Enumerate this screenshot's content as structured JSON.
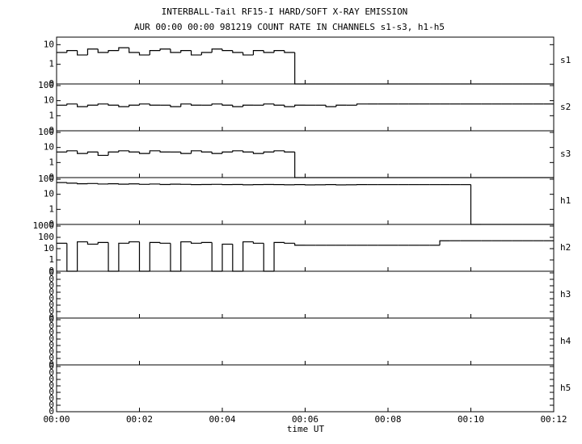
{
  "chart_data": {
    "type": "line",
    "title": "INTERBALL-Tail RF15-I HARD/SOFT X-RAY EMISSION",
    "subtitle": "AUR 00:00 00:00 981219  COUNT RATE IN CHANNELS s1-s3, h1-h5",
    "x_label": "time UT",
    "xlim": [
      0,
      12
    ],
    "xticks": [
      {
        "value": 0,
        "label": "00:00"
      },
      {
        "value": 2,
        "label": "00:02"
      },
      {
        "value": 4,
        "label": "00:04"
      },
      {
        "value": 6,
        "label": "00:06"
      },
      {
        "value": 8,
        "label": "00:08"
      },
      {
        "value": 10,
        "label": "00:10"
      },
      {
        "value": 12,
        "label": "00:12"
      }
    ],
    "yscale": "log",
    "color": "#000000",
    "x": [
      0,
      0.25,
      0.5,
      0.75,
      1,
      1.25,
      1.5,
      1.75,
      2,
      2.25,
      2.5,
      2.75,
      3,
      3.25,
      3.5,
      3.75,
      4,
      4.25,
      4.5,
      4.75,
      5,
      5.25,
      5.5,
      5.75,
      6,
      6.25,
      6.5,
      6.75,
      7,
      7.25,
      7.5,
      7.75,
      8,
      8.25,
      8.5,
      8.75,
      9,
      9.25,
      9.5,
      9.75,
      10,
      10.25,
      10.5,
      10.75,
      11,
      11.25,
      11.5,
      11.75,
      12
    ],
    "panels": [
      {
        "name": "s1",
        "ylim": [
          0,
          20
        ],
        "yticks": [
          0,
          1,
          10
        ],
        "values": [
          4,
          5,
          3,
          6,
          4,
          5,
          7,
          4,
          3,
          5,
          6,
          4,
          5,
          3,
          4,
          6,
          5,
          4,
          3,
          5,
          4,
          5,
          4,
          0,
          0,
          0,
          0,
          0,
          0,
          0,
          0,
          0,
          0,
          0,
          0,
          0,
          0,
          0,
          0,
          0,
          0,
          0,
          0,
          0,
          0,
          0,
          0,
          0,
          0
        ]
      },
      {
        "name": "s2",
        "ylim": [
          0,
          100
        ],
        "yticks": [
          0,
          1,
          10,
          100
        ],
        "values": [
          5,
          6,
          4,
          5,
          6,
          5,
          4,
          5,
          6,
          5,
          5,
          4,
          6,
          5,
          5,
          6,
          5,
          4,
          5,
          5,
          6,
          5,
          4,
          5,
          5,
          5,
          4,
          5,
          5,
          6,
          6,
          6,
          6,
          6,
          6,
          6,
          6,
          6,
          6,
          6,
          6,
          6,
          6,
          6,
          6,
          6,
          6,
          6,
          6
        ]
      },
      {
        "name": "s3",
        "ylim": [
          0,
          100
        ],
        "yticks": [
          0,
          1,
          10,
          100
        ],
        "values": [
          5,
          6,
          4,
          5,
          3,
          5,
          6,
          5,
          4,
          6,
          5,
          5,
          4,
          6,
          5,
          4,
          5,
          6,
          5,
          4,
          5,
          6,
          5,
          0,
          0,
          0,
          0,
          0,
          0,
          0,
          0,
          0,
          0,
          0,
          0,
          0,
          0,
          0,
          0,
          0,
          0,
          0,
          0,
          0,
          0,
          0,
          0,
          0,
          0
        ]
      },
      {
        "name": "h1",
        "ylim": [
          0,
          100
        ],
        "yticks": [
          0,
          1,
          10,
          100
        ],
        "values": [
          60,
          55,
          50,
          52,
          48,
          50,
          47,
          49,
          46,
          48,
          45,
          47,
          46,
          44,
          45,
          46,
          44,
          45,
          43,
          44,
          45,
          44,
          43,
          44,
          42,
          43,
          44,
          42,
          43,
          44,
          44,
          44,
          44,
          44,
          44,
          44,
          44,
          44,
          44,
          44,
          0,
          0,
          0,
          0,
          0,
          0,
          0,
          0,
          0
        ]
      },
      {
        "name": "h2",
        "ylim": [
          0,
          1000
        ],
        "yticks": [
          0,
          1,
          10,
          100,
          1000
        ],
        "values": [
          30,
          0,
          40,
          25,
          35,
          0,
          30,
          40,
          0,
          35,
          30,
          0,
          40,
          30,
          35,
          0,
          25,
          0,
          40,
          30,
          0,
          35,
          30,
          20,
          20,
          20,
          20,
          20,
          20,
          20,
          20,
          20,
          20,
          20,
          20,
          20,
          20,
          50,
          50,
          50,
          50,
          50,
          50,
          50,
          50,
          50,
          50,
          50,
          50
        ]
      },
      {
        "name": "h3",
        "ylim": [
          1e-07,
          1
        ],
        "yticks": [
          {
            "value": 1e-07,
            "label": "0"
          },
          {
            "value": 1e-06,
            "label": "0"
          },
          {
            "value": 1e-05,
            "label": "0"
          },
          {
            "value": 0.0001,
            "label": "0"
          },
          {
            "value": 0.001,
            "label": "0"
          },
          {
            "value": 0.01,
            "label": "0"
          },
          {
            "value": 0.1,
            "label": "0"
          },
          {
            "value": 1,
            "label": "0"
          }
        ]
      },
      {
        "name": "h4",
        "ylim": [
          1e-07,
          1
        ],
        "yticks": [
          {
            "value": 1e-07,
            "label": "0"
          },
          {
            "value": 1e-06,
            "label": "0"
          },
          {
            "value": 1e-05,
            "label": "0"
          },
          {
            "value": 0.0001,
            "label": "0"
          },
          {
            "value": 0.001,
            "label": "0"
          },
          {
            "value": 0.01,
            "label": "0"
          },
          {
            "value": 0.1,
            "label": "0"
          },
          {
            "value": 1,
            "label": "0"
          }
        ]
      },
      {
        "name": "h5",
        "ylim": [
          1e-07,
          1
        ],
        "yticks": [
          {
            "value": 1e-07,
            "label": "0"
          },
          {
            "value": 1e-06,
            "label": "0"
          },
          {
            "value": 1e-05,
            "label": "0"
          },
          {
            "value": 0.0001,
            "label": "0"
          },
          {
            "value": 0.001,
            "label": "0"
          },
          {
            "value": 0.01,
            "label": "0"
          },
          {
            "value": 0.1,
            "label": "0"
          },
          {
            "value": 1,
            "label": "0"
          }
        ]
      }
    ]
  }
}
